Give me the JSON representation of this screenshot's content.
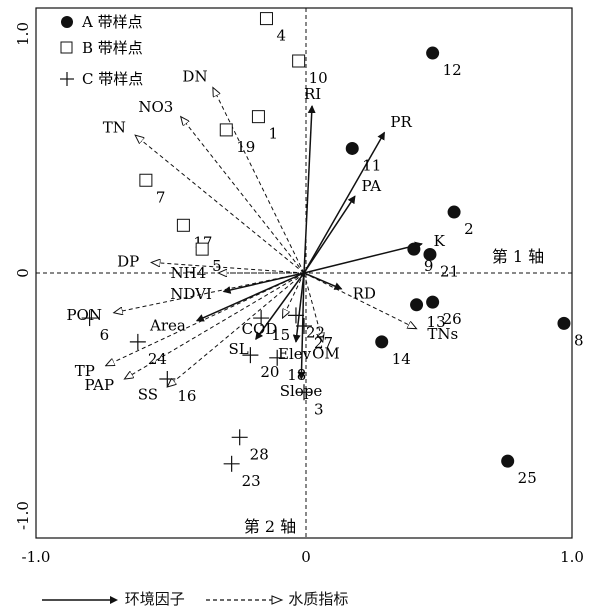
{
  "chart_data": {
    "type": "scatter",
    "title": "",
    "xlabel": "第 1 轴",
    "ylabel": "第 2 轴",
    "xlim": [
      -1.0,
      1.0
    ],
    "ylim": [
      -1.0,
      1.0
    ],
    "x_ticks": [
      "-1.0",
      "0",
      "1.0"
    ],
    "y_ticks": [
      "1.0",
      "0",
      "-1.0"
    ],
    "grid": false,
    "zero_lines": true,
    "legend_position": "top-left",
    "series": [
      {
        "name": "A 带样点",
        "marker": "filled-circle",
        "points": [
          {
            "label": "12",
            "x": 0.48,
            "y": 0.83
          },
          {
            "label": "11",
            "x": 0.18,
            "y": 0.47
          },
          {
            "label": "2",
            "x": 0.56,
            "y": 0.23
          },
          {
            "label": "9",
            "x": 0.41,
            "y": 0.09
          },
          {
            "label": "21",
            "x": 0.47,
            "y": 0.07
          },
          {
            "label": "26",
            "x": 0.48,
            "y": -0.11
          },
          {
            "label": "13",
            "x": 0.42,
            "y": -0.12
          },
          {
            "label": "8",
            "x": 0.97,
            "y": -0.19
          },
          {
            "label": "14",
            "x": 0.29,
            "y": -0.26
          },
          {
            "label": "25",
            "x": 0.76,
            "y": -0.71
          }
        ]
      },
      {
        "name": "B 带样点",
        "marker": "open-square",
        "points": [
          {
            "label": "4",
            "x": -0.14,
            "y": 0.96
          },
          {
            "label": "10",
            "x": -0.02,
            "y": 0.8
          },
          {
            "label": "1",
            "x": -0.17,
            "y": 0.59
          },
          {
            "label": "19",
            "x": -0.29,
            "y": 0.54
          },
          {
            "label": "7",
            "x": -0.59,
            "y": 0.35
          },
          {
            "label": "17",
            "x": -0.45,
            "y": 0.18
          },
          {
            "label": "5",
            "x": -0.38,
            "y": 0.09
          }
        ]
      },
      {
        "name": "C 带样点",
        "marker": "plus",
        "points": [
          {
            "label": "6",
            "x": -0.8,
            "y": -0.17
          },
          {
            "label": "24",
            "x": -0.62,
            "y": -0.26
          },
          {
            "label": "16",
            "x": -0.51,
            "y": -0.4
          },
          {
            "label": "15",
            "x": -0.16,
            "y": -0.17
          },
          {
            "label": "22",
            "x": -0.03,
            "y": -0.16
          },
          {
            "label": "27",
            "x": 0.0,
            "y": -0.2
          },
          {
            "label": "20",
            "x": -0.2,
            "y": -0.31
          },
          {
            "label": "18",
            "x": -0.1,
            "y": -0.32
          },
          {
            "label": "3",
            "x": 0.0,
            "y": -0.45
          },
          {
            "label": "28",
            "x": -0.24,
            "y": -0.62
          },
          {
            "label": "23",
            "x": -0.27,
            "y": -0.72
          }
        ]
      }
    ],
    "vectors": [
      {
        "name": "RI",
        "group": "env",
        "x": 0.03,
        "y": 0.63
      },
      {
        "name": "PR",
        "group": "env",
        "x": 0.3,
        "y": 0.53
      },
      {
        "name": "PA",
        "group": "env",
        "x": 0.19,
        "y": 0.29
      },
      {
        "name": "K",
        "group": "env",
        "x": 0.44,
        "y": 0.11
      },
      {
        "name": "RD",
        "group": "env",
        "x": 0.14,
        "y": -0.06
      },
      {
        "name": "NDVI",
        "group": "env",
        "x": -0.3,
        "y": -0.07
      },
      {
        "name": "Area",
        "group": "env",
        "x": -0.4,
        "y": -0.18
      },
      {
        "name": "SL",
        "group": "env",
        "x": -0.18,
        "y": -0.25
      },
      {
        "name": "Elev",
        "group": "env",
        "x": -0.03,
        "y": -0.26
      },
      {
        "name": "Slope",
        "group": "env",
        "x": -0.01,
        "y": -0.4
      },
      {
        "name": "DN",
        "group": "water",
        "x": -0.34,
        "y": 0.7
      },
      {
        "name": "NO3",
        "group": "water",
        "x": -0.46,
        "y": 0.59
      },
      {
        "name": "TN",
        "group": "water",
        "x": -0.63,
        "y": 0.52
      },
      {
        "name": "DP",
        "group": "water",
        "x": -0.57,
        "y": 0.04
      },
      {
        "name": "NH4",
        "group": "water",
        "x": -0.32,
        "y": 0.0
      },
      {
        "name": "PON",
        "group": "water",
        "x": -0.71,
        "y": -0.15
      },
      {
        "name": "TP",
        "group": "water",
        "x": -0.74,
        "y": -0.35
      },
      {
        "name": "PAP",
        "group": "water",
        "x": -0.67,
        "y": -0.4
      },
      {
        "name": "SS",
        "group": "water",
        "x": -0.51,
        "y": -0.43
      },
      {
        "name": "COD",
        "group": "water",
        "x": -0.08,
        "y": -0.17
      },
      {
        "name": "OM",
        "group": "water",
        "x": 0.07,
        "y": -0.26
      },
      {
        "name": "TNs",
        "group": "water",
        "x": 0.42,
        "y": -0.21
      }
    ],
    "vector_legend": [
      {
        "key": "env",
        "label": "环境因子"
      },
      {
        "key": "water",
        "label": "水质指标"
      }
    ]
  },
  "legend_box": {
    "a_label": "A 带样点",
    "b_label": "B 带样点",
    "c_label": "C 带样点"
  },
  "footer_legend": {
    "env_label": "环境因子",
    "water_label": "水质指标"
  },
  "axis_labels": {
    "axis1": "第 1 轴",
    "axis2": "第 2 轴"
  }
}
